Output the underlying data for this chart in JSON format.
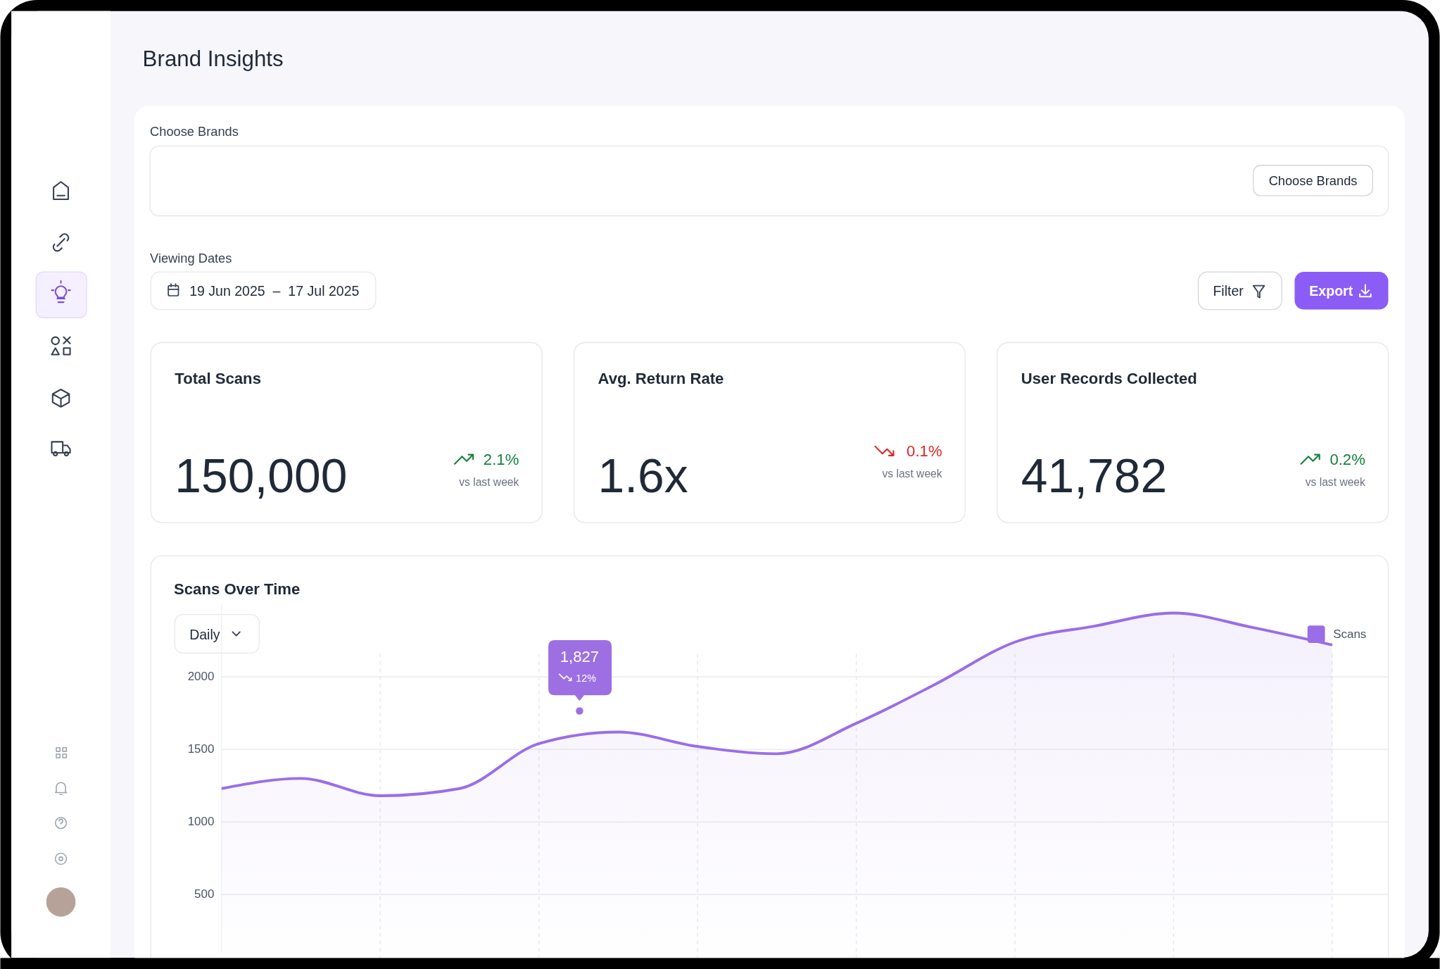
{
  "chart_data": [
    {
      "type": "other",
      "title": "Brand Insights",
      "annotations": [
        "Choose Brands",
        "Choose Brands",
        "Viewing Dates",
        "19 Jun 2025  –  17 Jul 2025",
        "Filter",
        "Export"
      ]
    },
    {
      "type": "other",
      "title": "Total Scans",
      "annotations": [
        "150,000",
        "2.1%",
        "vs last week"
      ]
    },
    {
      "type": "other",
      "title": "Avg. Return Rate",
      "annotations": [
        "1.6x",
        "0.1%",
        "vs last week"
      ]
    },
    {
      "type": "other",
      "title": "User Records Collected",
      "annotations": [
        "41,782",
        "0.2%",
        "vs last week"
      ]
    },
    {
      "type": "area",
      "title": "Scans Over Time",
      "annotations": [
        "Daily",
        "1,827",
        "12%"
      ],
      "categories": [
        null,
        null,
        null,
        null,
        null,
        null,
        null,
        null,
        null,
        null,
        null,
        null,
        null,
        null,
        null
      ],
      "series": [
        {
          "name": "Scans",
          "color": "#9a6ee6",
          "values": [
            1230,
            1300,
            1180,
            1230,
            1540,
            1620,
            1520,
            1470,
            1680,
            1950,
            2240,
            2350,
            2440,
            2340,
            2220
          ]
        }
      ],
      "ylim": [
        100,
        2500
      ],
      "yticks": [
        500,
        1000,
        1500,
        2000
      ],
      "grid": true,
      "legend": "top right"
    }
  ]
}
